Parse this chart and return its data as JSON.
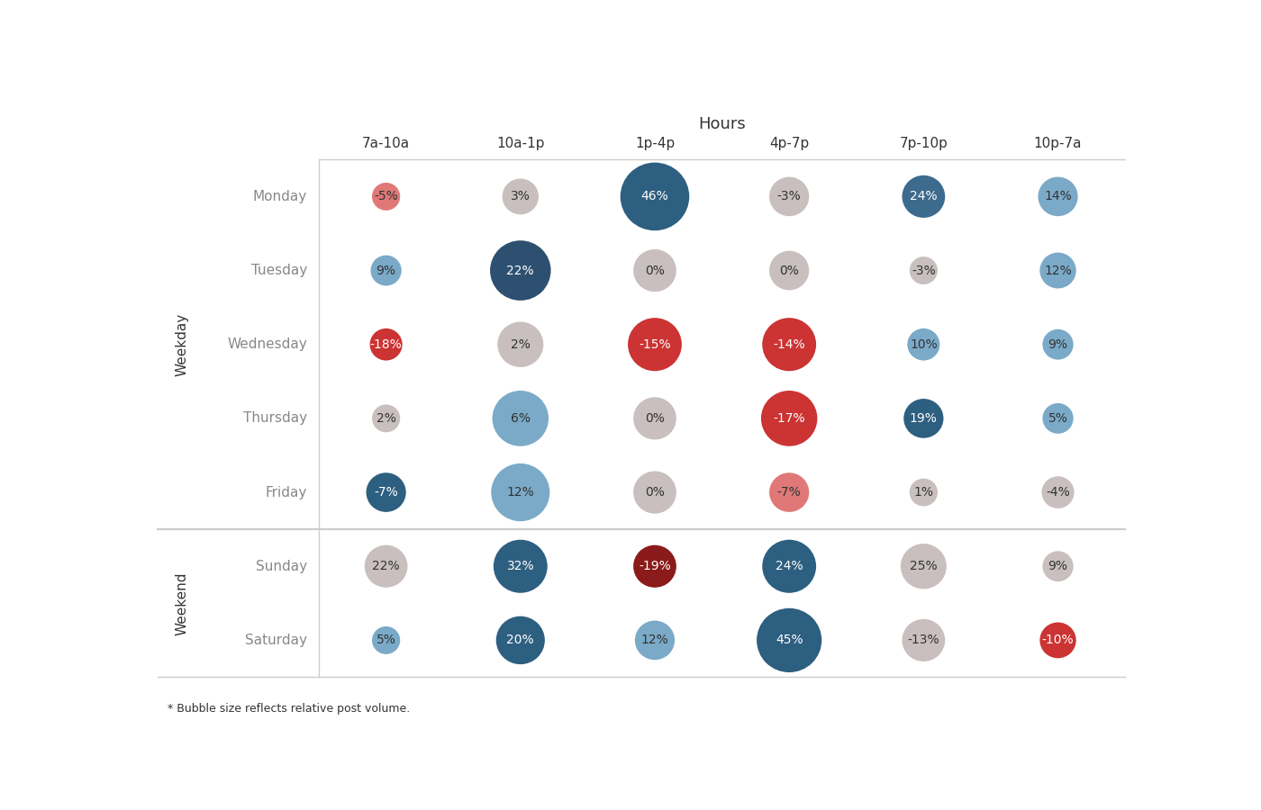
{
  "title": "Hours",
  "col_labels": [
    "7a-10a",
    "10a-1p",
    "1p-4p",
    "4p-7p",
    "7p-10p",
    "10p-7a"
  ],
  "row_labels": [
    "Monday",
    "Tuesday",
    "Wednesday",
    "Thursday",
    "Friday",
    "Sunday",
    "Saturday"
  ],
  "weekday_label": "Weekday",
  "weekend_label": "Weekend",
  "weekday_rows": [
    0,
    1,
    2,
    3,
    4
  ],
  "weekend_rows": [
    5,
    6
  ],
  "values": [
    [
      -5,
      3,
      46,
      -3,
      24,
      14
    ],
    [
      9,
      22,
      0,
      0,
      -3,
      12
    ],
    [
      -18,
      2,
      -15,
      -14,
      10,
      9
    ],
    [
      2,
      6,
      0,
      -17,
      19,
      5
    ],
    [
      -7,
      12,
      0,
      -7,
      1,
      -4
    ],
    [
      22,
      32,
      -19,
      24,
      25,
      9
    ],
    [
      5,
      20,
      12,
      45,
      -13,
      -10
    ]
  ],
  "bubble_sizes": [
    [
      15,
      25,
      90,
      30,
      35,
      30
    ],
    [
      18,
      70,
      35,
      30,
      15,
      25
    ],
    [
      20,
      40,
      55,
      55,
      20,
      18
    ],
    [
      15,
      60,
      35,
      60,
      30,
      18
    ],
    [
      30,
      65,
      35,
      30,
      15,
      20
    ],
    [
      35,
      55,
      35,
      55,
      40,
      18
    ],
    [
      15,
      45,
      30,
      80,
      35,
      25
    ]
  ],
  "color_map": {
    "0,0": "#e07878",
    "0,1": "#c9bfbf",
    "0,2": "#2d5f80",
    "0,3": "#c9bfbf",
    "0,4": "#3d6b8e",
    "0,5": "#7aaac8",
    "1,0": "#7aaac8",
    "1,1": "#2d5070",
    "1,2": "#c9bfbf",
    "1,3": "#c9bfbf",
    "1,4": "#c9bfbf",
    "1,5": "#7aaac8",
    "2,0": "#cc3333",
    "2,1": "#c9bfbf",
    "2,2": "#cc3333",
    "2,3": "#cc3333",
    "2,4": "#7aaac8",
    "2,5": "#7aaac8",
    "3,0": "#c9bfbf",
    "3,1": "#7aaac8",
    "3,2": "#c9bfbf",
    "3,3": "#cc3333",
    "3,4": "#2d5f80",
    "3,5": "#7aaac8",
    "4,0": "#2d5f80",
    "4,1": "#7aaac8",
    "4,2": "#c9bfbf",
    "4,3": "#e07878",
    "4,4": "#c9bfbf",
    "4,5": "#c9bfbf",
    "5,0": "#c9bfbf",
    "5,1": "#2d5f80",
    "5,2": "#8b1a1a",
    "5,3": "#2d5f80",
    "5,4": "#c9bfbf",
    "5,5": "#c9bfbf",
    "6,0": "#7aaac8",
    "6,1": "#2d5f80",
    "6,2": "#7aaac8",
    "6,3": "#2d5f80",
    "6,4": "#c9bfbf",
    "6,5": "#cc3333"
  },
  "light_text_colors": [
    "#c9bfbf"
  ],
  "dark_text_colors": [
    "#e07878",
    "#7aaac8"
  ],
  "bg_color": "#ffffff",
  "grid_color": "#cccccc",
  "text_dark": "#333333",
  "text_light": "#ffffff",
  "text_gray": "#888888",
  "footnote": "* Bubble size reflects relative post volume.",
  "title_fontsize": 13,
  "label_fontsize": 11,
  "value_fontsize": 10,
  "axis_label_fontsize": 11
}
